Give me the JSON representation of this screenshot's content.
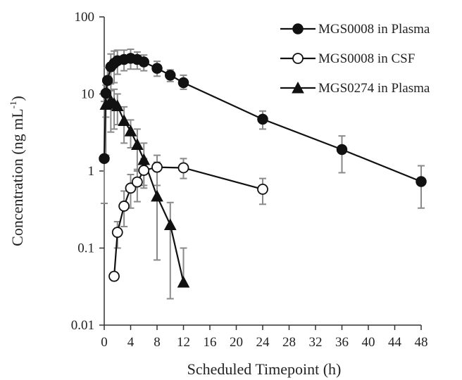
{
  "chart_data": {
    "type": "line",
    "xlabel": "Scheduled Timepoint (h)",
    "ylabel_main": "Concentration (ng mL",
    "ylabel_sup": "-1",
    "ylabel_close": ")",
    "x_scale": "linear",
    "y_scale": "log",
    "xlim": [
      0,
      48
    ],
    "ylim": [
      0.01,
      100
    ],
    "x_ticks": [
      0,
      4,
      8,
      12,
      16,
      20,
      24,
      28,
      32,
      36,
      40,
      44,
      48
    ],
    "x_tick_labels": [
      "0",
      "4",
      "8",
      "12",
      "16",
      "20",
      "24",
      "28",
      "32",
      "36",
      "40",
      "44",
      "48"
    ],
    "y_ticks": [
      0.01,
      0.1,
      1,
      10,
      100
    ],
    "y_tick_labels": [
      "0.01",
      "0.1",
      "1",
      "10",
      "100"
    ],
    "grid": false,
    "legend_position": "top-right",
    "error_bar_color": "#8a8a8a",
    "series": [
      {
        "name": "MGS0008 in Plasma",
        "marker": "filled-circle",
        "color": "#111111",
        "points": [
          {
            "x": 0,
            "y": 1.45,
            "low": 0.38,
            "high": 8.0
          },
          {
            "x": 0.25,
            "y": 10.2,
            "low": 5.0,
            "high": 14.5
          },
          {
            "x": 0.5,
            "y": 15.0,
            "low": 8.0,
            "high": 22.0
          },
          {
            "x": 1,
            "y": 22.5,
            "low": 11.0,
            "high": 33.0
          },
          {
            "x": 1.5,
            "y": 25.0,
            "low": 14.0,
            "high": 36.0
          },
          {
            "x": 2,
            "y": 27.0,
            "low": 18.0,
            "high": 37.0
          },
          {
            "x": 3,
            "y": 28.0,
            "low": 20.0,
            "high": 37.0
          },
          {
            "x": 4,
            "y": 29.0,
            "low": 21.0,
            "high": 38.0
          },
          {
            "x": 5,
            "y": 28.0,
            "low": 21.0,
            "high": 35.0
          },
          {
            "x": 6,
            "y": 26.0,
            "low": 20.0,
            "high": 32.0
          },
          {
            "x": 8,
            "y": 21.5,
            "low": 17.0,
            "high": 26.5
          },
          {
            "x": 10,
            "y": 17.5,
            "low": 14.5,
            "high": 20.5
          },
          {
            "x": 12,
            "y": 14.0,
            "low": 11.5,
            "high": 17.5
          },
          {
            "x": 24,
            "y": 4.7,
            "low": 3.5,
            "high": 6.0
          },
          {
            "x": 36,
            "y": 1.9,
            "low": 0.95,
            "high": 2.85
          },
          {
            "x": 48,
            "y": 0.73,
            "low": 0.33,
            "high": 1.17
          }
        ]
      },
      {
        "name": "MGS0008 in CSF",
        "marker": "open-circle",
        "color": "#111111",
        "points": [
          {
            "x": 1.5,
            "y": 0.043,
            "low": null,
            "high": null
          },
          {
            "x": 2,
            "y": 0.16,
            "low": 0.1,
            "high": 0.22
          },
          {
            "x": 3,
            "y": 0.35,
            "low": 0.19,
            "high": 0.55
          },
          {
            "x": 4,
            "y": 0.6,
            "low": 0.33,
            "high": 0.9
          },
          {
            "x": 5,
            "y": 0.72,
            "low": 0.4,
            "high": 1.05
          },
          {
            "x": 6,
            "y": 1.02,
            "low": 0.6,
            "high": 1.45
          },
          {
            "x": 8,
            "y": 1.12,
            "low": 0.65,
            "high": 1.6
          },
          {
            "x": 12,
            "y": 1.1,
            "low": 0.8,
            "high": 1.45
          },
          {
            "x": 24,
            "y": 0.58,
            "low": 0.37,
            "high": 0.8
          }
        ]
      },
      {
        "name": "MGS0274 in Plasma",
        "marker": "filled-triangle",
        "color": "#111111",
        "points": [
          {
            "x": 0.25,
            "y": 7.3,
            "low": 1.6,
            "high": 13.0
          },
          {
            "x": 1,
            "y": 8.2,
            "low": 3.2,
            "high": 13.5
          },
          {
            "x": 1.5,
            "y": 7.5,
            "low": 3.5,
            "high": 11.5
          },
          {
            "x": 2,
            "y": 7.0,
            "low": 4.0,
            "high": 10.0
          },
          {
            "x": 3,
            "y": 4.5,
            "low": 2.3,
            "high": 6.8
          },
          {
            "x": 4,
            "y": 3.3,
            "low": 2.0,
            "high": 4.6
          },
          {
            "x": 5,
            "y": 2.2,
            "low": 1.0,
            "high": 3.5
          },
          {
            "x": 6,
            "y": 1.4,
            "low": 0.65,
            "high": 2.3
          },
          {
            "x": 8,
            "y": 0.47,
            "low": 0.07,
            "high": 1.3
          },
          {
            "x": 10,
            "y": 0.2,
            "low": 0.022,
            "high": 0.39
          },
          {
            "x": 12,
            "y": 0.036,
            "low": null,
            "high": 0.1
          }
        ]
      }
    ]
  }
}
